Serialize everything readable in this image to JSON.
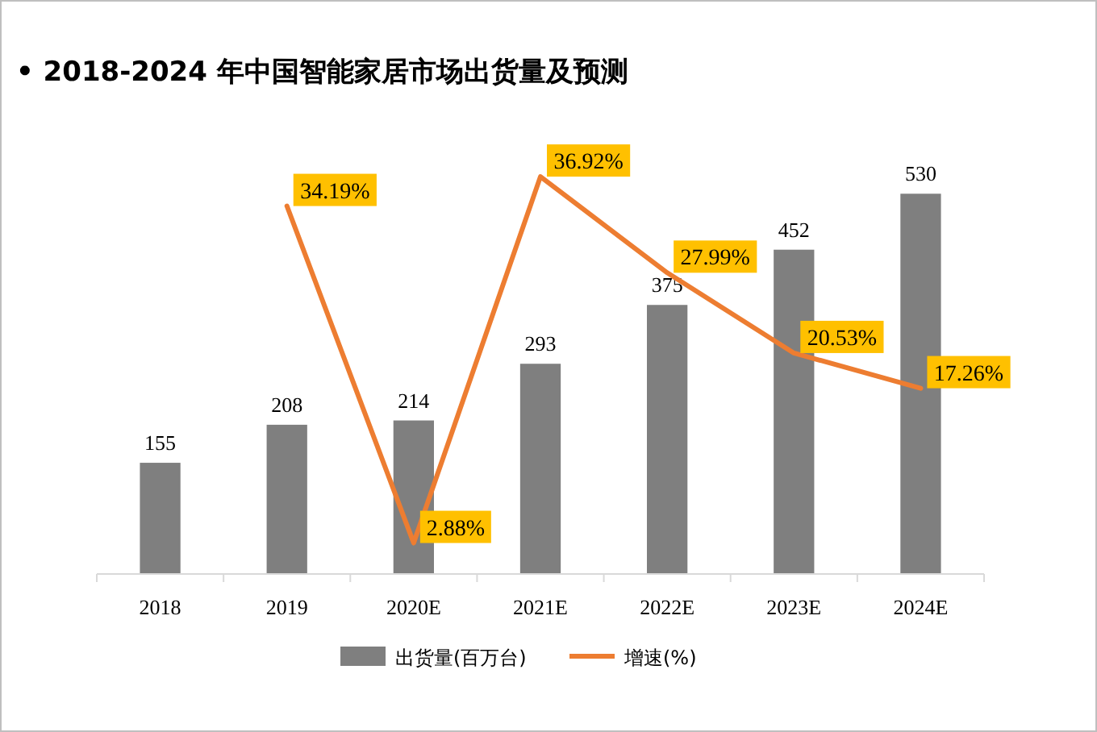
{
  "chart_data": {
    "type": "bar",
    "title": "• 2018-2024 年中国智能家居市场出货量及预测",
    "categories": [
      "2018",
      "2019",
      "2020E",
      "2021E",
      "2022E",
      "2023E",
      "2024E"
    ],
    "series": [
      {
        "name": "出货量(百万台)",
        "color": "#7f7f7f",
        "values": [
          155,
          208,
          214,
          293,
          375,
          452,
          530
        ]
      },
      {
        "name": "增速(%)",
        "type": "line",
        "axis": "y2",
        "color": "#ed7d31",
        "values": [
          null,
          34.19,
          2.88,
          36.92,
          27.99,
          20.53,
          17.26
        ],
        "value_labels": [
          null,
          "34.19%",
          "2.88%",
          "36.92%",
          "27.99%",
          "20.53%",
          "17.26%"
        ]
      }
    ],
    "ylim": [
      0,
      600
    ],
    "y2lim": [
      0,
      40
    ],
    "tick_labels": "x",
    "data_labels": true,
    "legend": "bottom",
    "grid": false,
    "marker": "none",
    "line_style": "solid"
  }
}
